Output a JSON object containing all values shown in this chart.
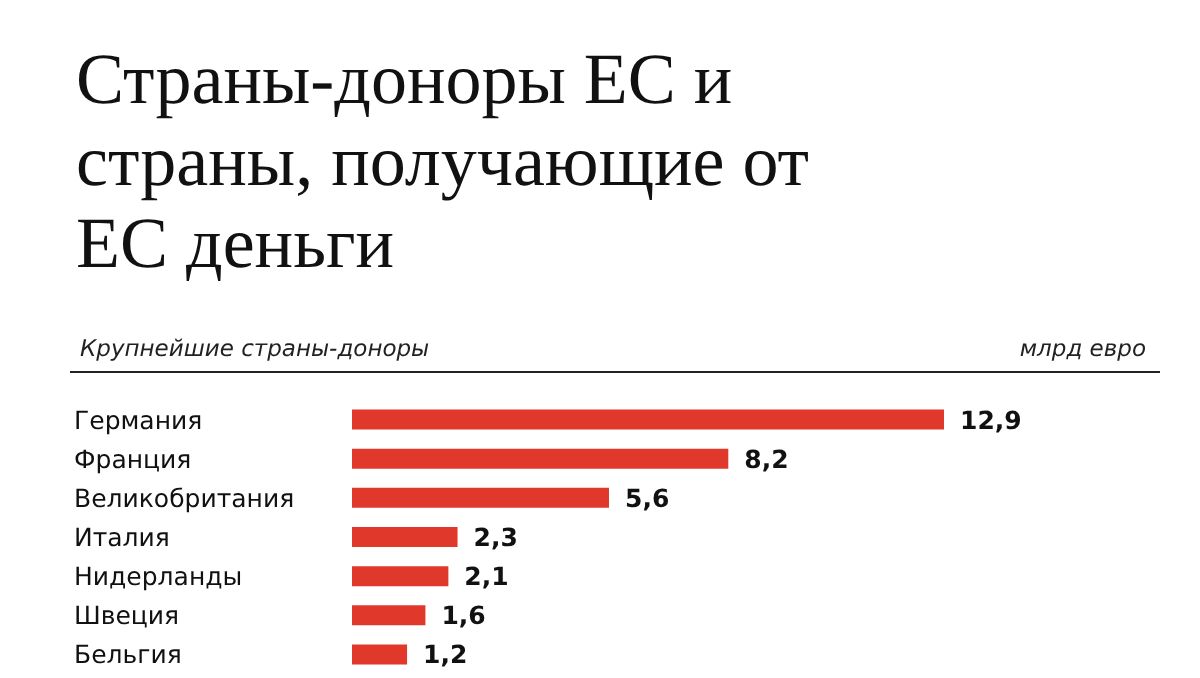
{
  "chart_data": {
    "type": "bar",
    "orientation": "horizontal",
    "title": "Страны-доноры ЕС и страны, получающие от ЕС деньги",
    "subtitle": "Крупнейшие страны-доноры",
    "xlabel": "млрд евро",
    "categories": [
      "Германия",
      "Франция",
      "Великобритания",
      "Италия",
      "Нидерланды",
      "Швеция",
      "Бельгия"
    ],
    "values": [
      12.9,
      8.2,
      5.6,
      2.3,
      2.1,
      1.6,
      1.2
    ],
    "value_labels": [
      "12,9",
      "8,2",
      "5,6",
      "2,3",
      "2,1",
      "1,6",
      "1,2"
    ],
    "color": "#e0392b"
  }
}
